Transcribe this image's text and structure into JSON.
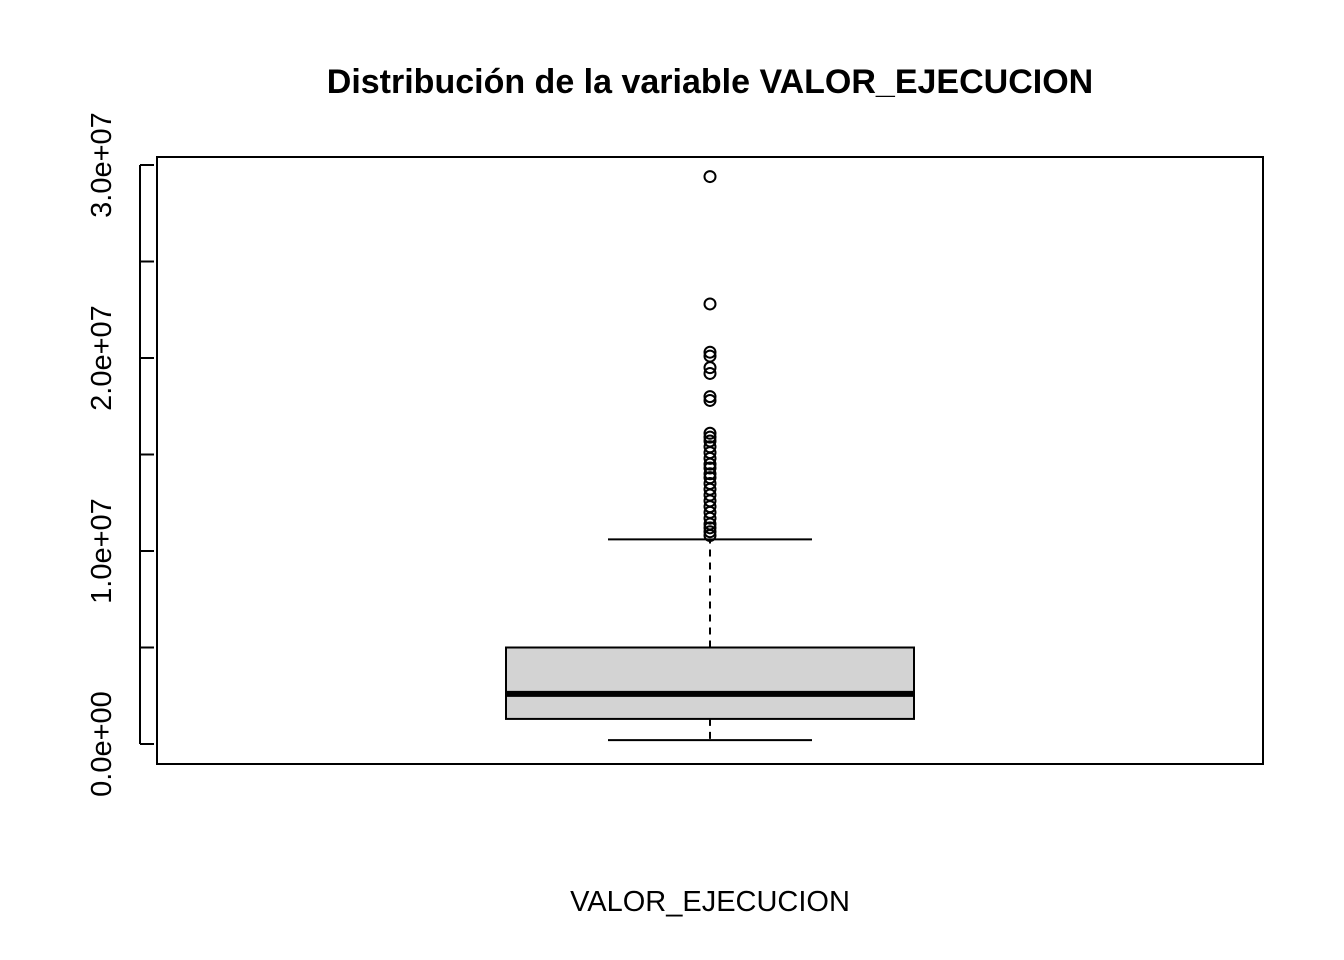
{
  "chart_data": {
    "type": "boxplot",
    "title": "Distribución de la variable VALOR_EJECUCION",
    "xlabel": "VALOR_EJECUCION",
    "ylabel": "",
    "ylim": [
      -1000000,
      30500000
    ],
    "yticks": [
      0,
      5000000,
      10000000,
      15000000,
      20000000,
      25000000,
      30000000
    ],
    "ytick_labels": [
      "0.0e+00",
      "",
      "1.0e+07",
      "",
      "2.0e+07",
      "",
      "3.0e+07"
    ],
    "box": {
      "whisker_low": 200000,
      "q1": 1300000,
      "median": 2600000,
      "q3": 5000000,
      "whisker_high": 10600000
    },
    "outliers": [
      29400000,
      22800000,
      20300000,
      20100000,
      19500000,
      19200000,
      18000000,
      17800000,
      16100000,
      15900000,
      15700000,
      15400000,
      15100000,
      14800000,
      14500000,
      14300000,
      14000000,
      13800000,
      13500000,
      13200000,
      12900000,
      12600000,
      12300000,
      12000000,
      11700000,
      11400000,
      11200000,
      11000000,
      10800000
    ],
    "box_fill": "#d3d3d3",
    "grid": false,
    "legend": "none"
  }
}
